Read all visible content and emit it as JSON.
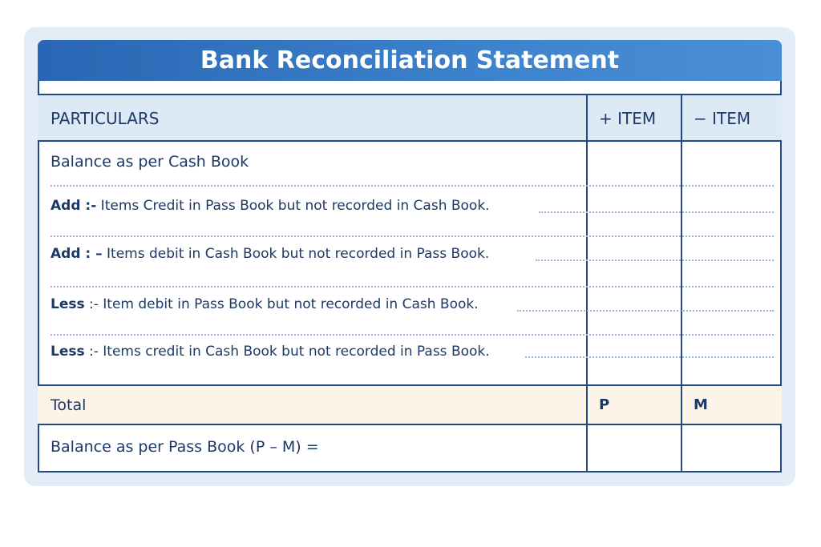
{
  "title": "Bank Reconciliation Statement",
  "headers": {
    "particulars": "PARTICULARS",
    "plus": "+ ITEM",
    "minus": "− ITEM"
  },
  "rows": [
    {
      "prefix": "",
      "text": "Balance as per Cash Book"
    },
    {
      "prefix": "Add :-",
      "text": " Items Credit in Pass Book but not recorded in Cash Book."
    },
    {
      "prefix": "Add : –",
      "text": " Items debit in Cash Book but not recorded in Pass Book."
    },
    {
      "prefix": "Less",
      "text": " :- Item debit in Pass Book but not recorded in Cash Book."
    },
    {
      "prefix": "Less",
      "text": " :- Items credit in Cash Book but not recorded in Pass Book."
    }
  ],
  "total": {
    "label": "Total",
    "plus": "P",
    "minus": "M"
  },
  "final": {
    "label": "Balance as per Pass Book (P – M) ="
  },
  "colors": {
    "header_blue": "#2a66b3",
    "border": "#1f4a86",
    "total_bg": "#fcf4e8"
  }
}
